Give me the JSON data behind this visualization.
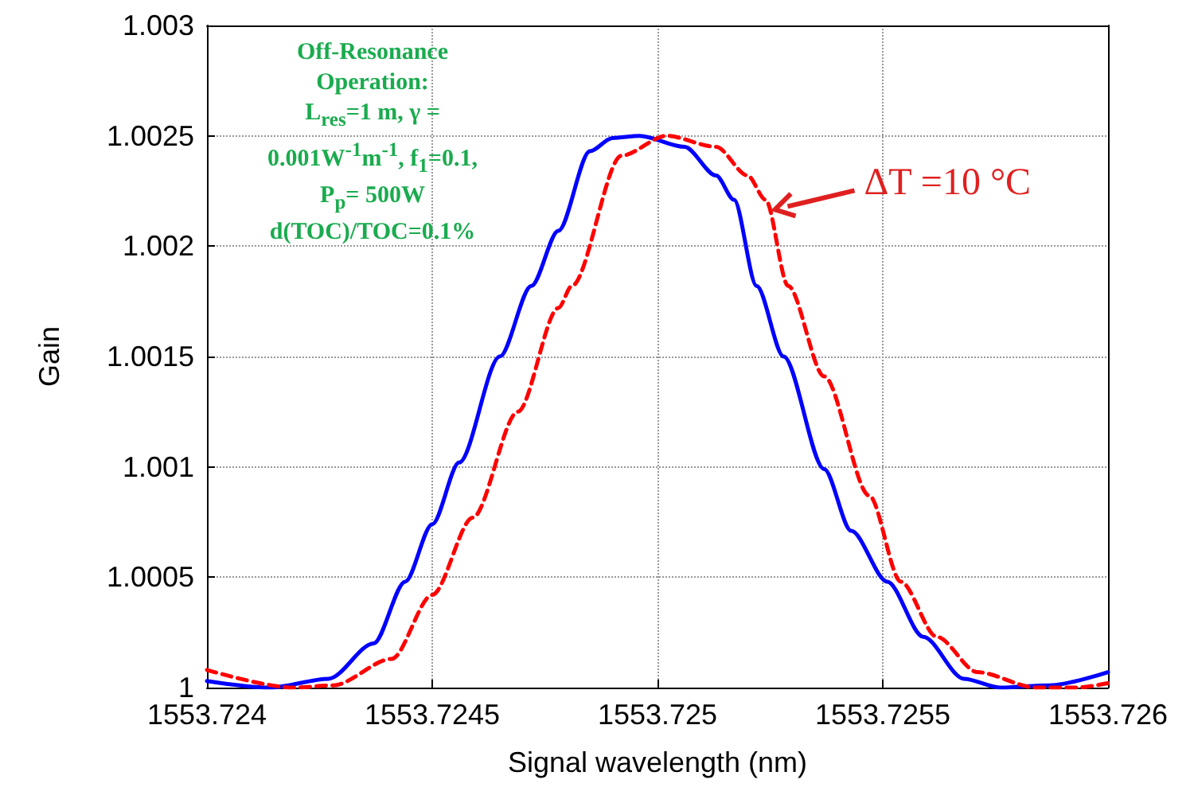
{
  "chart_data": {
    "type": "line",
    "xlabel": "Signal wavelength (nm)",
    "ylabel": "Gain",
    "xlim": [
      1553.724,
      1553.726
    ],
    "xticks": [
      1553.724,
      1553.7245,
      1553.725,
      1553.7255,
      1553.726
    ],
    "ylim": [
      1,
      1.003
    ],
    "yticks": [
      1,
      1.0005,
      1.001,
      1.0015,
      1.002,
      1.0025,
      1.003
    ],
    "grid": true,
    "marker": "none",
    "annotations": [
      "Off-Resonance\nOperation:\nL$_{res}$=1 m, γ =\n0.001W$^{-1}$m$^{-1}$, f$_{1}$=0.1,\nP$_{p}$= 500W\nd(TOC)/TOC=0.1%",
      {
        "text": "ΔT =10 °C",
        "x": 1553.72525,
        "y": 1.00218
      }
    ],
    "series": [
      {
        "color": "#0000ff",
        "line_style": "solid",
        "x": [
          1553.724,
          1553.72414,
          1553.72427,
          1553.72437,
          1553.72444,
          1553.7245,
          1553.72456,
          1553.72465,
          1553.72472,
          1553.72478,
          1553.72485,
          1553.7249,
          1553.72496,
          1553.72506,
          1553.72513,
          1553.72517,
          1553.72522,
          1553.72528,
          1553.72537,
          1553.72543,
          1553.72551,
          1553.72559,
          1553.72568,
          1553.72576,
          1553.72587,
          1553.726
        ],
        "values": [
          1.00003,
          1,
          1.00004,
          1.0002,
          1.00048,
          1.00074,
          1.00102,
          1.0015,
          1.00182,
          1.00207,
          1.00243,
          1.00249,
          1.0025,
          1.00245,
          1.00232,
          1.00221,
          1.00182,
          1.0015,
          1.00099,
          1.00071,
          1.00048,
          1.00023,
          1.00004,
          1,
          1.00001,
          1.00007
        ]
      },
      {
        "color": "#ff0000",
        "line_style": "dashed",
        "x": [
          1553.724,
          1553.72419,
          1553.72428,
          1553.72441,
          1553.7245,
          1553.72459,
          1553.72469,
          1553.72478,
          1553.72481,
          1553.72492,
          1553.72502,
          1553.72513,
          1553.7252,
          1553.72524,
          1553.72529,
          1553.72537,
          1553.72547,
          1553.72554,
          1553.72562,
          1553.72571,
          1553.72584,
          1553.72593,
          1553.726
        ],
        "values": [
          1.00008,
          1,
          1.00001,
          1.00013,
          1.00042,
          1.00077,
          1.00125,
          1.00172,
          1.00182,
          1.00241,
          1.0025,
          1.00245,
          1.00232,
          1.00221,
          1.00182,
          1.00141,
          1.00087,
          1.00048,
          1.00023,
          1.00007,
          1,
          1,
          1.00002
        ]
      }
    ]
  }
}
